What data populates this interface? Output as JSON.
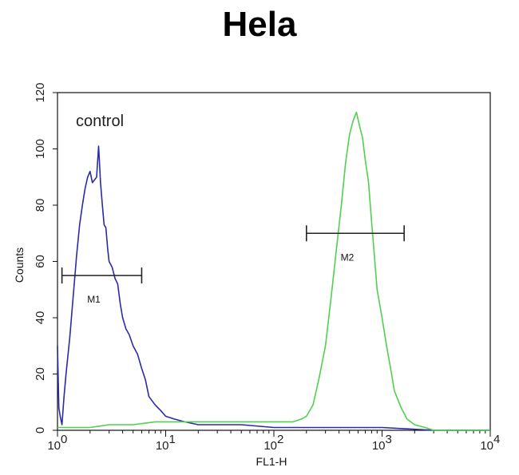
{
  "chart_data": {
    "type": "line",
    "title": "Hela",
    "xlabel": "FL1-H",
    "ylabel": "Counts",
    "x_scale": "log",
    "xlim": [
      1,
      10000
    ],
    "ylim": [
      0,
      120
    ],
    "x_ticks": [
      {
        "value": 1,
        "base": "10",
        "exp": "0"
      },
      {
        "value": 10,
        "base": "10",
        "exp": "1"
      },
      {
        "value": 100,
        "base": "10",
        "exp": "2"
      },
      {
        "value": 1000,
        "base": "10",
        "exp": "3"
      },
      {
        "value": 10000,
        "base": "10",
        "exp": "4"
      }
    ],
    "y_ticks": [
      0,
      20,
      40,
      60,
      80,
      100,
      120
    ],
    "annotation": "control",
    "markers": [
      {
        "label": "M1",
        "x_start": 1.1,
        "x_end": 6,
        "y": 55
      },
      {
        "label": "M2",
        "x_start": 200,
        "x_end": 1600,
        "y": 70
      }
    ],
    "series": [
      {
        "color": "#2b2aa8",
        "x": [
          1.0,
          1.03,
          1.06,
          1.1,
          1.15,
          1.2,
          1.3,
          1.4,
          1.5,
          1.6,
          1.7,
          1.8,
          1.9,
          2.0,
          2.1,
          2.2,
          2.3,
          2.4,
          2.5,
          2.6,
          2.7,
          2.8,
          2.9,
          3.0,
          3.2,
          3.4,
          3.6,
          3.8,
          4.0,
          4.3,
          4.6,
          5.0,
          5.5,
          6.0,
          6.5,
          7.0,
          8.0,
          9.0,
          10,
          12,
          15,
          20,
          30,
          50,
          100,
          300,
          1000,
          3000,
          10000
        ],
        "y": [
          30,
          8,
          5,
          2,
          12,
          20,
          33,
          48,
          62,
          73,
          80,
          86,
          90,
          92,
          88,
          89,
          90,
          101,
          88,
          80,
          73,
          72,
          65,
          60,
          58,
          54,
          52,
          45,
          40,
          36,
          34,
          30,
          27,
          22,
          18,
          12,
          9,
          7,
          5,
          4,
          3,
          2,
          2,
          2,
          1,
          1,
          1,
          0,
          0
        ]
      },
      {
        "color": "#4fd14f",
        "x": [
          1,
          2,
          3,
          5,
          8,
          10,
          20,
          50,
          100,
          150,
          180,
          200,
          230,
          260,
          300,
          340,
          380,
          420,
          460,
          500,
          540,
          580,
          620,
          660,
          700,
          750,
          800,
          850,
          900,
          1000,
          1100,
          1200,
          1300,
          1500,
          1700,
          2000,
          2500,
          3000,
          5000,
          10000
        ],
        "y": [
          1,
          1,
          2,
          2,
          3,
          3,
          3,
          3,
          3,
          3,
          4,
          5,
          9,
          18,
          30,
          48,
          65,
          80,
          95,
          105,
          110,
          113,
          108,
          104,
          96,
          88,
          74,
          62,
          50,
          40,
          30,
          22,
          14,
          8,
          4,
          2,
          1,
          0,
          0,
          0
        ]
      }
    ]
  }
}
